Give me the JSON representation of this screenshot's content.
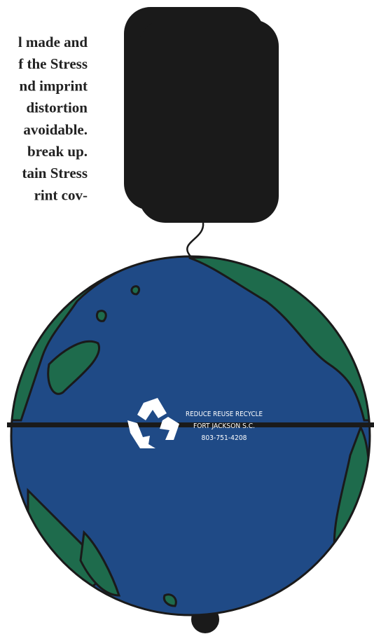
{
  "description_lines": [
    "l made and",
    "f the Stress",
    "nd imprint",
    "distortion",
    "avoidable.",
    "break up.",
    "tain Stress",
    "rint cov-"
  ],
  "imprint": {
    "lines": [
      "REDUCE REUSE RECYCLE",
      "FORT JACKSON S.C.",
      "803-751-4208"
    ]
  }
}
